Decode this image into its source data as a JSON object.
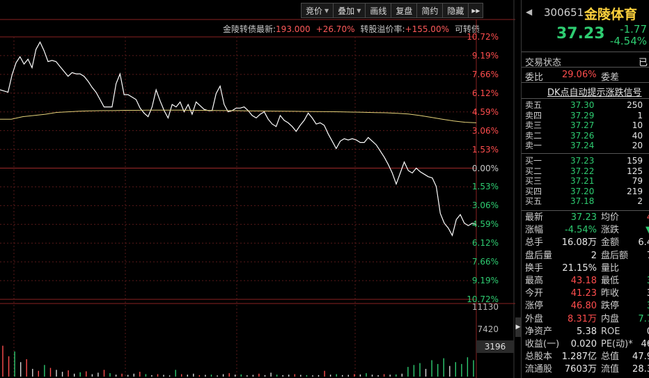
{
  "toolbar": {
    "buttons": [
      {
        "label": "竞价",
        "caret": true
      },
      {
        "label": "叠加",
        "caret": true
      },
      {
        "label": "画线",
        "caret": false
      },
      {
        "label": "复盘",
        "caret": false
      },
      {
        "label": "简约",
        "caret": false
      },
      {
        "label": "隐藏",
        "caret": false
      }
    ],
    "more": "▸▸"
  },
  "info": {
    "bond_label": "金陵转债最新:",
    "bond_price": "193.000",
    "bond_change": "+26.70%",
    "premium_label": "转股溢价率:",
    "premium_value": "+155.00%",
    "convert_label": "可转债"
  },
  "chart_data": {
    "type": "line",
    "title": "",
    "y_pct_labels": [
      "10.72%",
      "9.19%",
      "7.66%",
      "6.12%",
      "4.59%",
      "3.06%",
      "1.53%",
      "0.00%",
      "1.53%",
      "3.06%",
      "4.59%",
      "6.12%",
      "7.66%",
      "9.19%",
      "10.72%"
    ],
    "y_pct_signs": [
      "pos",
      "pos",
      "pos",
      "pos",
      "pos",
      "pos",
      "pos",
      "neu",
      "neg",
      "neg",
      "neg",
      "neg",
      "neg",
      "neg",
      "neg"
    ],
    "ylim": [
      -10.72,
      10.72
    ],
    "series": [
      {
        "name": "",
        "color": "#ffffff",
        "values": [
          6.4,
          6.3,
          6.2,
          7.6,
          8.6,
          9.1,
          8.5,
          8.9,
          8.2,
          9.7,
          10.3,
          9.6,
          8.7,
          8.8,
          8.7,
          8.3,
          7.9,
          7.5,
          7.8,
          7.7,
          7.7,
          7.5,
          7.1,
          6.6,
          6.2,
          5.6,
          5.0,
          5.0,
          5.0,
          6.9,
          7.7,
          6.0,
          6.0,
          5.8,
          5.6,
          4.9,
          4.5,
          4.2,
          5.0,
          6.4,
          5.5,
          4.7,
          4.1,
          5.2,
          5.0,
          5.4,
          4.6,
          5.2,
          4.4,
          5.4,
          5.1,
          4.8,
          4.7,
          4.7,
          6.1,
          6.7,
          5.2,
          4.6,
          4.7,
          4.9,
          4.9,
          5.0,
          4.7,
          4.3,
          4.1,
          4.4,
          4.6,
          4.0,
          3.6,
          3.4,
          4.3,
          3.9,
          3.7,
          3.4,
          3.0,
          3.5,
          3.9,
          4.5,
          4.1,
          3.6,
          3.7,
          3.5,
          2.8,
          2.2,
          1.6,
          2.2,
          2.4,
          2.3,
          2.4,
          2.3,
          2.1,
          2.1,
          2.5,
          2.2,
          1.9,
          1.4,
          0.9,
          0.3,
          -0.4,
          -1.3,
          -0.4,
          0.5,
          -0.2,
          -0.4,
          0.0,
          -0.3,
          -0.5,
          -0.7,
          -0.8,
          -1.5,
          -3.7,
          -4.5,
          -4.9,
          -5.5,
          -4.2,
          -3.8,
          -4.5,
          -4.7,
          -4.5,
          -4.6
        ]
      },
      {
        "name": "",
        "color": "#e6d37a",
        "values": [
          4.0,
          4.0,
          4.2,
          4.3,
          4.4,
          4.55,
          4.6,
          4.65,
          4.68,
          4.7,
          4.7,
          4.72,
          4.72,
          4.73,
          4.73,
          4.73,
          4.73,
          4.72,
          4.72,
          4.71,
          4.7,
          4.69,
          4.68,
          4.67,
          4.66,
          4.65,
          4.64,
          4.63,
          4.62,
          4.61,
          4.6,
          4.58,
          4.56,
          4.54,
          4.52,
          4.48,
          4.42,
          4.3,
          4.15,
          4.0,
          3.85,
          3.75,
          3.7
        ]
      }
    ],
    "volume": {
      "labels": [
        "11130",
        "7420",
        "3196"
      ],
      "values": [
        {
          "v": 3196,
          "c": "r"
        },
        {
          "v": 2100,
          "c": "r"
        },
        {
          "v": 2600,
          "c": "g"
        },
        {
          "v": 1500,
          "c": "w"
        },
        {
          "v": 1800,
          "c": "r"
        },
        {
          "v": 800,
          "c": "w"
        },
        {
          "v": 600,
          "c": "r"
        },
        {
          "v": 1200,
          "c": "g"
        },
        {
          "v": 900,
          "c": "r"
        },
        {
          "v": 700,
          "c": "w"
        },
        {
          "v": 500,
          "c": "w"
        },
        {
          "v": 650,
          "c": "r"
        },
        {
          "v": 300,
          "c": "w"
        },
        {
          "v": 450,
          "c": "g"
        },
        {
          "v": 550,
          "c": "r"
        },
        {
          "v": 250,
          "c": "w"
        },
        {
          "v": 400,
          "c": "w"
        },
        {
          "v": 700,
          "c": "r"
        },
        {
          "v": 350,
          "c": "g"
        },
        {
          "v": 200,
          "c": "w"
        },
        {
          "v": 300,
          "c": "r"
        },
        {
          "v": 180,
          "c": "w"
        },
        {
          "v": 300,
          "c": "w"
        },
        {
          "v": 500,
          "c": "r"
        },
        {
          "v": 260,
          "c": "g"
        },
        {
          "v": 150,
          "c": "w"
        },
        {
          "v": 250,
          "c": "r"
        },
        {
          "v": 180,
          "c": "w"
        },
        {
          "v": 120,
          "c": "w"
        },
        {
          "v": 700,
          "c": "g"
        },
        {
          "v": 250,
          "c": "r"
        },
        {
          "v": 200,
          "c": "w"
        },
        {
          "v": 300,
          "c": "w"
        },
        {
          "v": 150,
          "c": "r"
        },
        {
          "v": 180,
          "c": "w"
        },
        {
          "v": 200,
          "c": "g"
        },
        {
          "v": 120,
          "c": "w"
        },
        {
          "v": 250,
          "c": "w"
        },
        {
          "v": 350,
          "c": "r"
        },
        {
          "v": 200,
          "c": "w"
        },
        {
          "v": 220,
          "c": "g"
        },
        {
          "v": 140,
          "c": "w"
        },
        {
          "v": 180,
          "c": "w"
        },
        {
          "v": 300,
          "c": "r"
        },
        {
          "v": 160,
          "c": "w"
        },
        {
          "v": 400,
          "c": "w"
        },
        {
          "v": 200,
          "c": "g"
        },
        {
          "v": 150,
          "c": "w"
        },
        {
          "v": 200,
          "c": "w"
        },
        {
          "v": 250,
          "c": "r"
        },
        {
          "v": 180,
          "c": "w"
        },
        {
          "v": 150,
          "c": "g"
        },
        {
          "v": 130,
          "c": "w"
        },
        {
          "v": 160,
          "c": "w"
        },
        {
          "v": 600,
          "c": "r"
        },
        {
          "v": 200,
          "c": "w"
        },
        {
          "v": 250,
          "c": "g"
        },
        {
          "v": 160,
          "c": "w"
        },
        {
          "v": 180,
          "c": "w"
        },
        {
          "v": 260,
          "c": "r"
        },
        {
          "v": 220,
          "c": "w"
        },
        {
          "v": 350,
          "c": "g"
        },
        {
          "v": 200,
          "c": "w"
        },
        {
          "v": 150,
          "c": "w"
        },
        {
          "v": 250,
          "c": "r"
        },
        {
          "v": 200,
          "c": "w"
        },
        {
          "v": 220,
          "c": "g"
        },
        {
          "v": 300,
          "c": "w"
        },
        {
          "v": 1000,
          "c": "g"
        },
        {
          "v": 1200,
          "c": "g"
        },
        {
          "v": 1400,
          "c": "g"
        },
        {
          "v": 800,
          "c": "w"
        },
        {
          "v": 1700,
          "c": "g"
        },
        {
          "v": 1300,
          "c": "g"
        },
        {
          "v": 1900,
          "c": "g"
        },
        {
          "v": 1100,
          "c": "w"
        },
        {
          "v": 1500,
          "c": "g"
        },
        {
          "v": 1300,
          "c": "g"
        },
        {
          "v": 2000,
          "c": "g"
        },
        {
          "v": 1700,
          "c": "g"
        }
      ]
    }
  },
  "stock": {
    "code": "300651",
    "name": "金陵体育",
    "price": "37.23",
    "change": "-1.77",
    "change_pct": "-4.54%"
  },
  "status": {
    "label": "交易状态",
    "value": "已",
    "ratio_label": "委比",
    "ratio_value": "29.06%",
    "diff_label": "委差"
  },
  "signal": "DK点自动提示涨跌信号",
  "orderbook": {
    "asks": [
      {
        "label": "卖五",
        "price": "37.30",
        "qty": "250"
      },
      {
        "label": "卖四",
        "price": "37.29",
        "qty": "1"
      },
      {
        "label": "卖三",
        "price": "37.27",
        "qty": "10"
      },
      {
        "label": "卖二",
        "price": "37.26",
        "qty": "40"
      },
      {
        "label": "卖一",
        "price": "37.24",
        "qty": "20"
      }
    ],
    "bids": [
      {
        "label": "买一",
        "price": "37.23",
        "qty": "159"
      },
      {
        "label": "买二",
        "price": "37.22",
        "qty": "125"
      },
      {
        "label": "买三",
        "price": "37.21",
        "qty": "79"
      },
      {
        "label": "买四",
        "price": "37.20",
        "qty": "219"
      },
      {
        "label": "买五",
        "price": "37.18",
        "qty": "2"
      }
    ]
  },
  "stats": [
    {
      "l1": "最新",
      "v1": "37.23",
      "c1": "g",
      "l2": "均价",
      "v2": "4",
      "c2": "r"
    },
    {
      "l1": "涨幅",
      "v1": "-4.54%",
      "c1": "g",
      "l2": "涨跌",
      "v2": "▼",
      "c2": "g"
    },
    {
      "l1": "总手",
      "v1": "16.08万",
      "c1": "w",
      "l2": "金额",
      "v2": "6.4",
      "c2": "w"
    },
    {
      "l1": "盘后量",
      "v1": "2",
      "c1": "w",
      "l2": "盘后额",
      "v2": "7",
      "c2": "w"
    },
    {
      "l1": "换手",
      "v1": "21.15%",
      "c1": "w",
      "l2": "量比",
      "v2": "",
      "c2": "w"
    },
    {
      "l1": "最高",
      "v1": "43.18",
      "c1": "r",
      "l2": "最低",
      "v2": "3",
      "c2": "g"
    },
    {
      "l1": "今开",
      "v1": "41.23",
      "c1": "r",
      "l2": "昨收",
      "v2": "3",
      "c2": "w"
    },
    {
      "l1": "涨停",
      "v1": "46.80",
      "c1": "r",
      "l2": "跌停",
      "v2": "3",
      "c2": "g"
    },
    {
      "l1": "外盘",
      "v1": "8.31万",
      "c1": "r",
      "l2": "内盘",
      "v2": "7.7",
      "c2": "g"
    },
    {
      "l1": "净资产",
      "v1": "5.38",
      "c1": "w",
      "l2": "ROE",
      "v2": "0",
      "c2": "w"
    },
    {
      "l1": "收益(一)",
      "v1": "0.020",
      "c1": "w",
      "l2": "PE(动)*",
      "v2": "46",
      "c2": "w"
    },
    {
      "l1": "总股本",
      "v1": "1.287亿",
      "c1": "w",
      "l2": "总值",
      "v2": "47.9",
      "c2": "w"
    },
    {
      "l1": "流通股",
      "v1": "7603万",
      "c1": "w",
      "l2": "流值",
      "v2": "28.3",
      "c2": "w"
    }
  ]
}
